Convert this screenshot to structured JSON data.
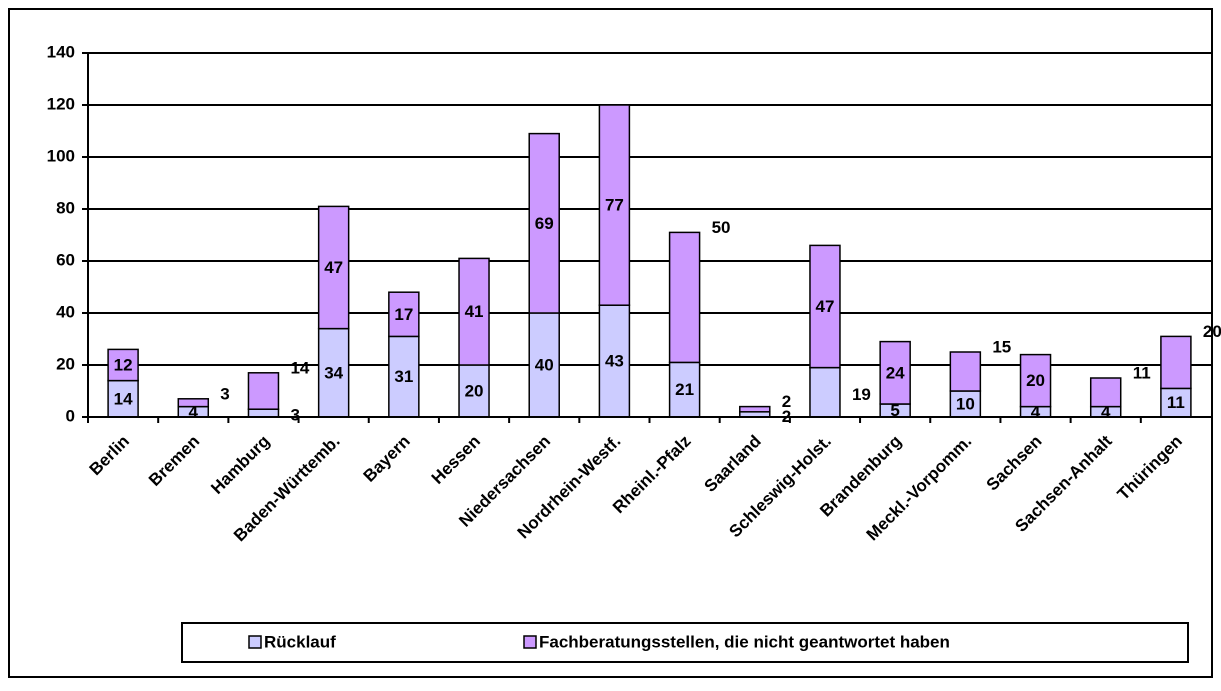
{
  "chart_data": {
    "type": "stacked_bar",
    "categories": [
      "Berlin",
      "Bremen",
      "Hamburg",
      "Baden-Württemb.",
      "Bayern",
      "Hessen",
      "Niedersachsen",
      "Nordrhein-Westf.",
      "Rheinl.-Pfalz",
      "Saarland",
      "Schleswig-Holst.",
      "Brandenburg",
      "Meckl.-Vorpomm.",
      "Sachsen",
      "Sachsen-Anhalt",
      "Thüringen"
    ],
    "series": [
      {
        "name": "Rücklauf",
        "color": "#ccccff",
        "values": [
          14,
          4,
          3,
          34,
          31,
          20,
          40,
          43,
          21,
          2,
          19,
          5,
          10,
          4,
          4,
          11
        ]
      },
      {
        "name": "Fachberatungsstellen, die nicht geantwortet haben",
        "color": "#cc99ff",
        "values": [
          12,
          3,
          14,
          47,
          17,
          41,
          69,
          77,
          50,
          2,
          47,
          24,
          15,
          20,
          11,
          20
        ]
      }
    ],
    "ylim": [
      0,
      140
    ],
    "yticks": [
      0,
      20,
      40,
      60,
      80,
      100,
      120,
      140
    ],
    "grid": true,
    "legend": "bottom"
  }
}
